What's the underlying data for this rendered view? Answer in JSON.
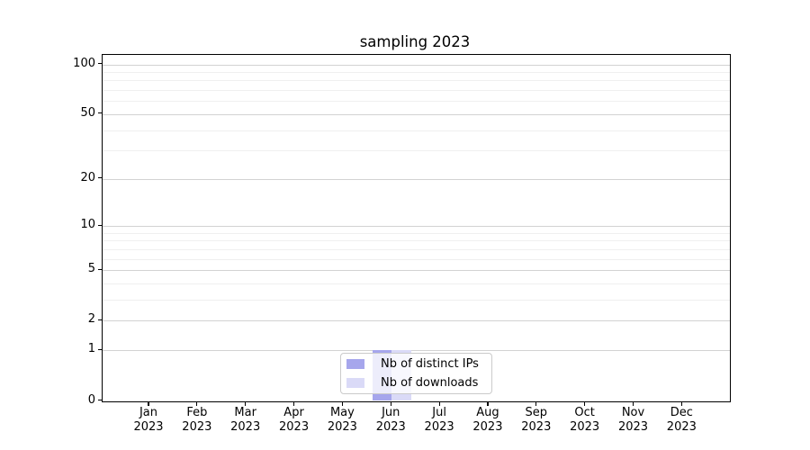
{
  "title": "sampling 2023",
  "legend": {
    "items": [
      {
        "label": "Nb of distinct IPs",
        "color": "#a6a6ec"
      },
      {
        "label": "Nb of downloads",
        "color": "#dadaf7"
      }
    ]
  },
  "chart_data": {
    "type": "bar",
    "title": "sampling 2023",
    "categories": [
      "Jan 2023",
      "Feb 2023",
      "Mar 2023",
      "Apr 2023",
      "May 2023",
      "Jun 2023",
      "Jul 2023",
      "Aug 2023",
      "Sep 2023",
      "Oct 2023",
      "Nov 2023",
      "Dec 2023"
    ],
    "series": [
      {
        "name": "Nb of distinct IPs",
        "color": "#a6a6ec",
        "values": [
          0,
          0,
          0,
          0,
          0,
          1,
          0,
          0,
          0,
          0,
          0,
          0
        ]
      },
      {
        "name": "Nb of downloads",
        "color": "#dadaf7",
        "values": [
          0,
          0,
          0,
          0,
          0,
          1,
          0,
          0,
          0,
          0,
          0,
          0
        ]
      }
    ],
    "xlabel": "",
    "ylabel": "",
    "yscale": "log1p",
    "yticks": [
      0,
      1,
      2,
      5,
      10,
      20,
      50,
      100
    ],
    "yticks_minor": [
      3,
      4,
      6,
      7,
      8,
      9,
      30,
      40,
      60,
      70,
      80,
      90
    ],
    "ylim": [
      0,
      115
    ],
    "grid": true,
    "legend_position": "lower center",
    "frame": true,
    "background": "#ffffff"
  }
}
